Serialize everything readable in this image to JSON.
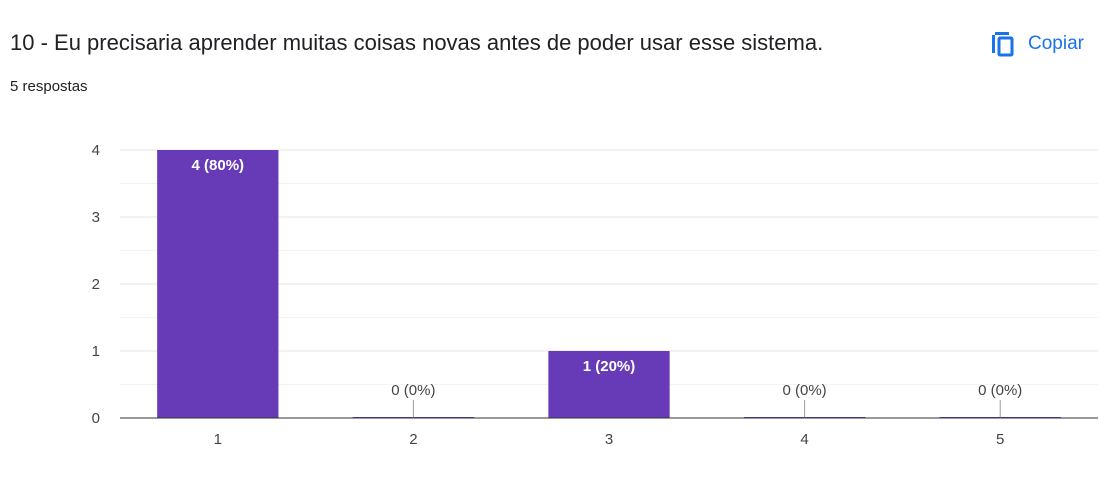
{
  "question": {
    "title": "10 - Eu precisaria aprender muitas coisas novas antes de poder usar esse sistema.",
    "responses": "5 respostas",
    "copy_label": "Copiar",
    "copy_icon": "copy-icon"
  },
  "colors": {
    "bar": "#673ab7",
    "accent": "#1a73e8",
    "text": "#202124",
    "axis_text": "#444444"
  },
  "chart_data": {
    "type": "bar",
    "categories": [
      "1",
      "2",
      "3",
      "4",
      "5"
    ],
    "values": [
      4,
      0,
      1,
      0,
      0
    ],
    "data_labels": [
      "4 (80%)",
      "0 (0%)",
      "1 (20%)",
      "0 (0%)",
      "0 (0%)"
    ],
    "yticks": [
      "0",
      "1",
      "2",
      "3",
      "4"
    ],
    "ylim": [
      0,
      4
    ],
    "grid": true
  }
}
